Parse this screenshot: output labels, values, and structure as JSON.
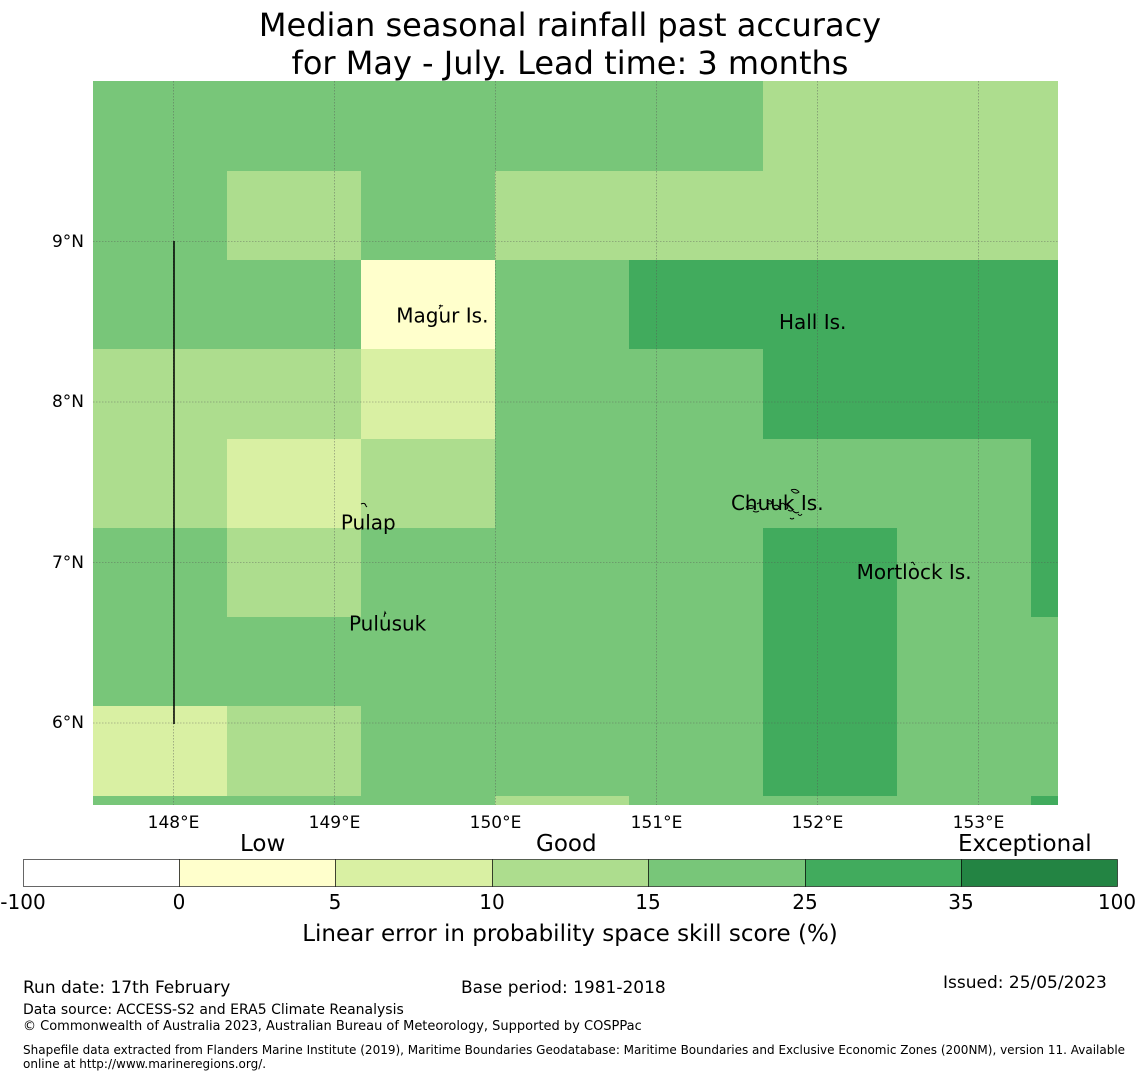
{
  "title": {
    "line1": "Median seasonal rainfall past accuracy",
    "line2": "for May - July. Lead time: 3 months"
  },
  "map": {
    "x_ticks": [
      "148°E",
      "149°E",
      "150°E",
      "151°E",
      "152°E",
      "153°E"
    ],
    "y_ticks": [
      "9°N",
      "8°N",
      "7°N",
      "6°N"
    ],
    "islands": [
      {
        "name": "Magur Is.",
        "lon": 149.67,
        "lat": 8.54
      },
      {
        "name": "Hall Is.",
        "lon": 151.97,
        "lat": 8.5
      },
      {
        "name": "Pulap",
        "lon": 149.21,
        "lat": 7.25
      },
      {
        "name": "Chuuk Is.",
        "lon": 151.75,
        "lat": 7.37
      },
      {
        "name": "Mortlock Is.",
        "lon": 152.6,
        "lat": 6.94
      },
      {
        "name": "Pulusuk",
        "lon": 149.33,
        "lat": 6.62
      }
    ],
    "colors": {
      "c0": "#ffffcc",
      "c5": "#d9f0a3",
      "c10": "#addd8e",
      "c15": "#78c679",
      "c25": "#41ab5d",
      "c35": "#238443"
    },
    "grid": [
      [
        "c15",
        "c15",
        "c15",
        "c15",
        "c15",
        "c10",
        "c10",
        "c10"
      ],
      [
        "c15",
        "c10",
        "c15",
        "c10",
        "c10",
        "c10",
        "c10",
        "c10"
      ],
      [
        "c15",
        "c15",
        "c0",
        "c15",
        "c25",
        "c25",
        "c25",
        "c25"
      ],
      [
        "c10",
        "c10",
        "c5",
        "c15",
        "c15",
        "c25",
        "c25",
        "c25"
      ],
      [
        "c10",
        "c5",
        "c10",
        "c15",
        "c15",
        "c15",
        "c15",
        "c25"
      ],
      [
        "c15",
        "c10",
        "c15",
        "c15",
        "c15",
        "c25",
        "c15",
        "c25"
      ],
      [
        "c15",
        "c15",
        "c15",
        "c15",
        "c15",
        "c25",
        "c15",
        "c15"
      ],
      [
        "c5",
        "c10",
        "c15",
        "c15",
        "c15",
        "c25",
        "c15",
        "c15"
      ],
      [
        "c15",
        "c15",
        "c15",
        "c10",
        "c15",
        "c15",
        "c15",
        "c25"
      ]
    ]
  },
  "legend": {
    "categories": {
      "low": "Low",
      "good": "Good",
      "exceptional": "Exceptional"
    },
    "ticks": [
      "-100",
      "0",
      "5",
      "10",
      "15",
      "25",
      "35",
      "100"
    ],
    "colors": [
      "#ffffff",
      "#ffffcc",
      "#d9f0a3",
      "#addd8e",
      "#78c679",
      "#41ab5d",
      "#238443"
    ],
    "label": "Linear error in probability space skill score (%)"
  },
  "footer": {
    "run_date": "Run date: 17th February",
    "base_period": "Base period: 1981-2018",
    "issued": "Issued: 25/05/2023",
    "data_source": "Data source: ACCESS-S2 and ERA5 Climate Reanalysis",
    "copyright": "© Commonwealth of Australia 2023, Australian Bureau of Meteorology, Supported by COSPPac",
    "shapefile_l1": "Shapefile data extracted from Flanders Marine Institute (2019), Maritime Boundaries Geodatabase: Maritime Boundaries and Exclusive Economic Zones (200NM), version 11. Available",
    "shapefile_l2": "online at http://www.marineregions.org/."
  }
}
